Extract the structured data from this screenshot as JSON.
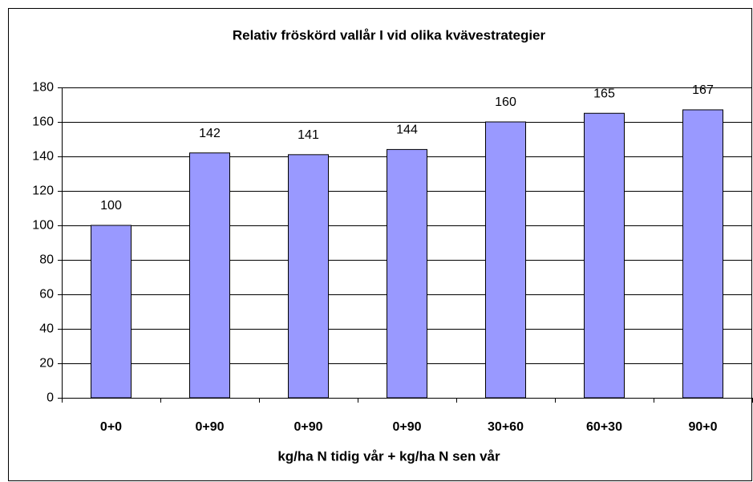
{
  "chart_data": {
    "type": "bar",
    "title": "Relativ fröskörd vallår I vid olika kvävestrategier",
    "x_label": "kg/ha N tidig vår + kg/ha N sen vår",
    "categories": [
      "0+0",
      "0+90",
      "0+90",
      "0+90",
      "30+60",
      "60+30",
      "90+0"
    ],
    "values": [
      100,
      142,
      141,
      144,
      160,
      165,
      167
    ],
    "color": "#9999ff",
    "ylim": [
      0,
      180
    ],
    "yticks": [
      0,
      20,
      40,
      60,
      80,
      100,
      120,
      140,
      160,
      180
    ],
    "grid": true
  }
}
